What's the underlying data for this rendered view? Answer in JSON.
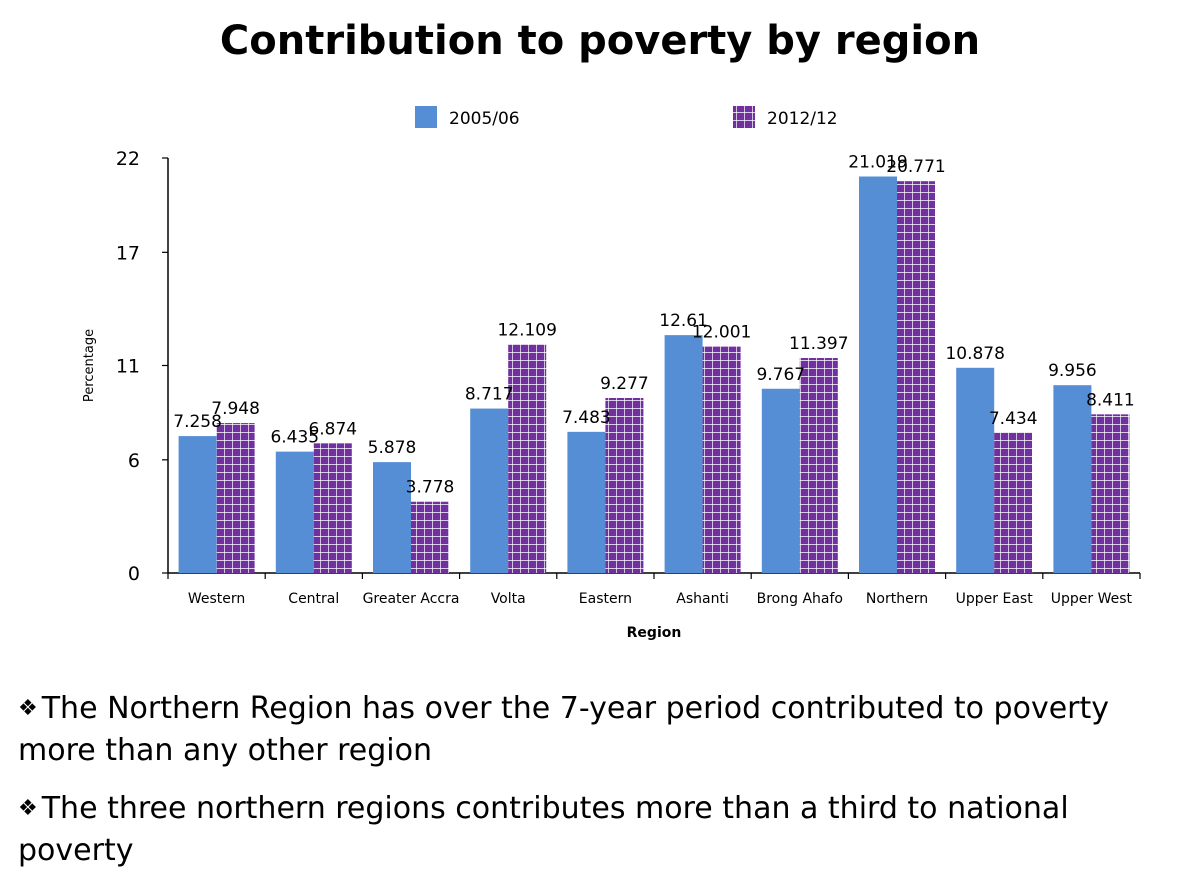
{
  "page_title": "Contribution to poverty by region",
  "chart_data": {
    "type": "bar",
    "title": "Contribution to poverty by region",
    "xlabel": "Region",
    "ylabel": "Percentage",
    "categories": [
      "Western",
      "Central",
      "Greater Accra",
      "Volta",
      "Eastern",
      "Ashanti",
      "Brong Ahafo",
      "Northern",
      "Upper East",
      "Upper West"
    ],
    "series": [
      {
        "name": "2005/06",
        "values": [
          7.258,
          6.435,
          5.878,
          8.717,
          7.483,
          12.61,
          9.767,
          21.019,
          10.878,
          9.956
        ],
        "color": "#558ed5",
        "pattern": "solid"
      },
      {
        "name": "2012/12",
        "values": [
          7.948,
          6.874,
          3.778,
          12.109,
          9.277,
          12.001,
          11.397,
          20.771,
          7.434,
          8.411
        ],
        "color": "#7030a0",
        "pattern": "grid"
      }
    ],
    "yticks": [
      0,
      6,
      11,
      17,
      22
    ],
    "ylim": [
      0,
      22
    ],
    "legend_position": "top",
    "grid": false
  },
  "bullets": [
    {
      "mark": "❖",
      "text": "The Northern Region has over the 7-year period contributed to poverty more than any other region"
    },
    {
      "mark": "❖",
      "text": "The three northern regions contributes more than a third to national poverty"
    }
  ]
}
